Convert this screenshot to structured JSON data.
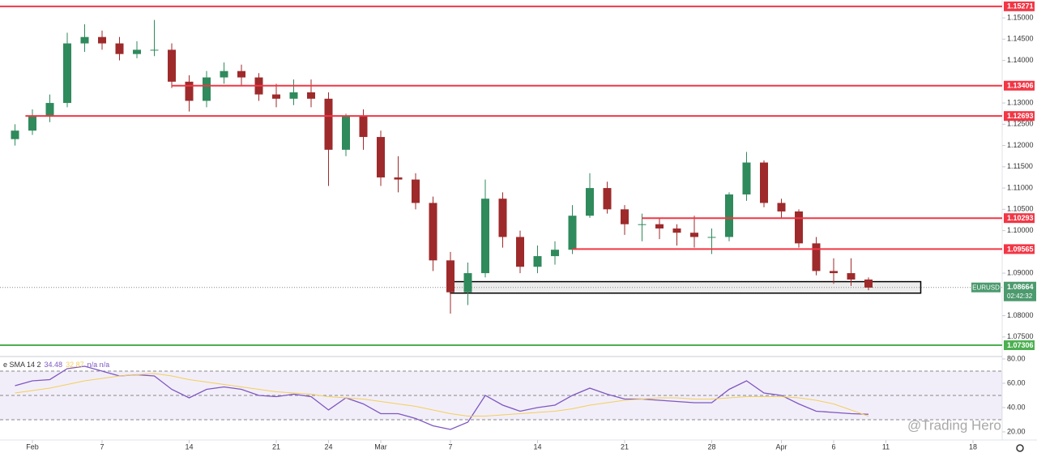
{
  "chart_data": {
    "type": "candlestick",
    "up_color": "#2f8a5c",
    "down_color": "#9e2a2b",
    "open": [
      1.1215,
      1.1235,
      1.127,
      1.13,
      1.144,
      1.1455,
      1.144,
      1.1415,
      1.1425,
      1.1425,
      1.135,
      1.1305,
      1.136,
      1.1375,
      1.136,
      1.132,
      1.131,
      1.1325,
      1.131,
      1.119,
      1.127,
      1.122,
      1.1125,
      1.112,
      1.1065,
      1.093,
      1.0855,
      1.09,
      1.1075,
      1.0985,
      1.0915,
      1.094,
      1.0955,
      1.1035,
      1.11,
      1.105,
      1.1015,
      1.1015,
      1.1005,
      1.0995,
      1.0985,
      1.0985,
      1.1085,
      1.116,
      1.1065,
      1.1045,
      1.097,
      1.0905,
      1.09,
      1.0885
    ],
    "high": [
      1.125,
      1.1285,
      1.132,
      1.1465,
      1.1485,
      1.147,
      1.1455,
      1.1445,
      1.1495,
      1.144,
      1.1365,
      1.1375,
      1.1395,
      1.139,
      1.137,
      1.1345,
      1.1355,
      1.1355,
      1.1325,
      1.1275,
      1.1285,
      1.1235,
      1.1175,
      1.1135,
      1.108,
      1.095,
      1.0925,
      1.112,
      1.109,
      1.1,
      1.0965,
      1.0975,
      1.106,
      1.1135,
      1.1115,
      1.106,
      1.104,
      1.103,
      1.1015,
      1.1035,
      1.1005,
      1.109,
      1.1185,
      1.1165,
      1.1075,
      1.105,
      1.0985,
      1.0935,
      1.0935,
      1.089
    ],
    "low": [
      1.12,
      1.1225,
      1.1255,
      1.129,
      1.142,
      1.1425,
      1.14,
      1.1405,
      1.141,
      1.1335,
      1.128,
      1.129,
      1.1345,
      1.134,
      1.1305,
      1.129,
      1.1295,
      1.129,
      1.1105,
      1.1175,
      1.119,
      1.1105,
      1.109,
      1.105,
      1.0905,
      1.0805,
      1.0825,
      1.089,
      1.096,
      1.09,
      1.09,
      1.092,
      1.0945,
      1.103,
      1.104,
      1.099,
      1.0975,
      1.098,
      1.0965,
      1.096,
      1.0945,
      1.0975,
      1.107,
      1.1055,
      1.103,
      1.096,
      1.0895,
      1.0875,
      1.087,
      1.086
    ],
    "close": [
      1.1235,
      1.127,
      1.13,
      1.144,
      1.1455,
      1.144,
      1.1415,
      1.1425,
      1.1425,
      1.135,
      1.1305,
      1.136,
      1.1375,
      1.136,
      1.132,
      1.131,
      1.1325,
      1.131,
      1.119,
      1.127,
      1.122,
      1.1125,
      1.112,
      1.1065,
      1.093,
      1.0855,
      1.09,
      1.1075,
      1.0985,
      1.0915,
      1.094,
      1.0955,
      1.1035,
      1.11,
      1.105,
      1.1015,
      1.1015,
      1.1005,
      1.0995,
      1.0985,
      1.0985,
      1.1085,
      1.116,
      1.1065,
      1.1045,
      1.097,
      1.0905,
      1.09,
      1.0885,
      1.0866
    ],
    "ylim": [
      1.0704,
      1.1542
    ],
    "yticks": [
      {
        "value": 1.15,
        "label": "1.15000"
      },
      {
        "value": 1.145,
        "label": "1.14500"
      },
      {
        "value": 1.14,
        "label": "1.14000"
      },
      {
        "value": 1.13,
        "label": "1.13000"
      },
      {
        "value": 1.125,
        "label": "1.12500"
      },
      {
        "value": 1.12,
        "label": "1.12000"
      },
      {
        "value": 1.115,
        "label": "1.11500"
      },
      {
        "value": 1.11,
        "label": "1.11000"
      },
      {
        "value": 1.105,
        "label": "1.10500"
      },
      {
        "value": 1.1,
        "label": "1.10000"
      },
      {
        "value": 1.09,
        "label": "1.09000"
      },
      {
        "value": 1.08,
        "label": "1.08000"
      },
      {
        "value": 1.075,
        "label": "1.07500"
      }
    ],
    "xticks": [
      {
        "value": 1,
        "label": "Feb"
      },
      {
        "value": 5,
        "label": "7"
      },
      {
        "value": 10,
        "label": "14"
      },
      {
        "value": 15,
        "label": "21"
      },
      {
        "value": 18,
        "label": "24"
      },
      {
        "value": 21,
        "label": "Mar"
      },
      {
        "value": 25,
        "label": "7"
      },
      {
        "value": 30,
        "label": "14"
      },
      {
        "value": 35,
        "label": "21"
      },
      {
        "value": 40,
        "label": "28"
      },
      {
        "value": 44,
        "label": "Apr"
      },
      {
        "value": 47,
        "label": "6"
      },
      {
        "value": 50,
        "label": "11"
      },
      {
        "value": 55,
        "label": "18"
      }
    ],
    "levels": [
      {
        "value": 1.15271,
        "color": "#f23645",
        "start": -1
      },
      {
        "value": 1.13406,
        "color": "#f23645",
        "start": 9
      },
      {
        "value": 1.12693,
        "color": "#f23645",
        "start": 0.6
      },
      {
        "value": 1.10293,
        "color": "#f23645",
        "start": 36
      },
      {
        "value": 1.09565,
        "color": "#f23645",
        "start": 32
      },
      {
        "value": 1.07306,
        "color": "#4caf50",
        "start": -1
      }
    ],
    "zone": {
      "low": 1.0853,
      "high": 1.088,
      "start": 25,
      "end": 52
    },
    "current": {
      "symbol": "EURUSD",
      "value": 1.08664,
      "countdown": "02:42:32",
      "color": "#4c9a6e"
    },
    "indicator": {
      "header": "e SMA 14 2",
      "na_label": "n/a n/a",
      "ylim": [
        15.3,
        82
      ],
      "yticks": [
        {
          "value": 80,
          "label": "80.00"
        },
        {
          "value": 60,
          "label": "60.00"
        },
        {
          "value": 40,
          "label": "40.00"
        },
        {
          "value": 20,
          "label": "20.00"
        }
      ],
      "band": [
        30,
        70
      ],
      "midline": 50,
      "series": [
        {
          "color": "#7e57c2",
          "values": [
            58,
            62,
            63,
            72,
            74,
            70,
            66,
            67,
            66,
            55,
            48,
            55,
            57,
            55,
            50,
            49,
            51,
            49,
            38,
            48,
            43,
            35,
            35,
            31,
            25,
            22,
            28,
            50,
            42,
            37,
            40,
            42,
            50,
            56,
            51,
            47,
            47,
            46,
            45,
            44,
            44,
            55,
            62,
            52,
            50,
            43,
            37,
            36,
            35,
            34.48
          ]
        },
        {
          "color": "#f2cf5b",
          "values": [
            52,
            54,
            56,
            59,
            62,
            64,
            66,
            67,
            68,
            66,
            63,
            61,
            59,
            57,
            55,
            53,
            52,
            51,
            49,
            48,
            47,
            45,
            43,
            41,
            38,
            35,
            33,
            33,
            34,
            35,
            36,
            37,
            39,
            42,
            44,
            46,
            47,
            48,
            48,
            47,
            47,
            48,
            49,
            49,
            49,
            48,
            46,
            43,
            38,
            32.87
          ]
        }
      ]
    },
    "watermark": "@Trading Hero"
  }
}
